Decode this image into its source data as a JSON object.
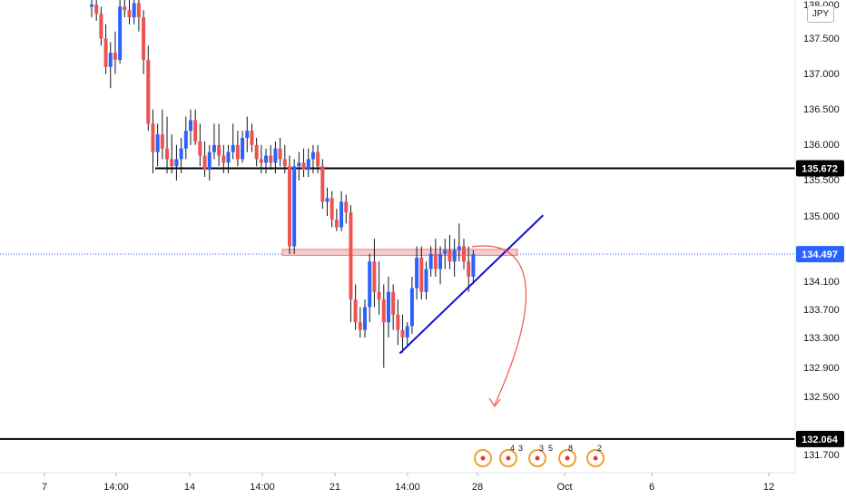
{
  "currency": "JPY",
  "colors": {
    "up": "#2962ff",
    "down": "#ef5350",
    "level": "#000000",
    "last": "#2962ff",
    "trendline": "#1010d0",
    "zone_fill": "#f7c6c8",
    "zone_stroke": "#e57373",
    "arrow": "#ef5350",
    "event": "#f0a030"
  },
  "chart_data": {
    "type": "candlestick",
    "x_ticks": [
      "7",
      "14:00",
      "14",
      "14:00",
      "21",
      "14:00",
      "28",
      "Oct",
      "6",
      "12"
    ],
    "y_ticks": [
      "138.000",
      "137.500",
      "137.000",
      "136.500",
      "136.000",
      "135.500",
      "135.000",
      "134.100",
      "133.700",
      "133.300",
      "132.900",
      "132.500",
      "131.700"
    ],
    "ylim": [
      131.55,
      138.05
    ],
    "price_tags": [
      "135.672",
      "134.497",
      "132.064"
    ],
    "horizontal_levels": [
      135.672,
      132.064
    ],
    "last_price": 134.497,
    "trendline": [
      [
        0,
        133.19
      ],
      [
        82,
        135.01
      ]
    ],
    "resistance_zone": [
      134.56,
      134.48
    ],
    "event_counts": [
      "4",
      "3",
      "3",
      "5",
      "8",
      "2"
    ],
    "candles": [
      [
        137.95,
        138.1,
        137.8,
        137.98
      ],
      [
        137.98,
        138.1,
        137.75,
        137.85
      ],
      [
        137.85,
        137.95,
        137.4,
        137.5
      ],
      [
        137.5,
        137.7,
        137.0,
        137.1
      ],
      [
        137.1,
        137.45,
        136.8,
        137.3
      ],
      [
        137.3,
        137.6,
        137.0,
        137.2
      ],
      [
        137.2,
        138.1,
        137.15,
        137.95
      ],
      [
        137.95,
        138.1,
        137.8,
        137.9
      ],
      [
        137.9,
        138.1,
        137.7,
        137.8
      ],
      [
        137.8,
        138.1,
        137.7,
        138.0
      ],
      [
        138.0,
        138.1,
        137.6,
        137.8
      ],
      [
        137.8,
        137.9,
        137.0,
        137.2
      ],
      [
        137.2,
        137.4,
        136.2,
        136.3
      ],
      [
        136.3,
        136.5,
        135.6,
        135.9
      ],
      [
        135.9,
        136.3,
        135.7,
        136.15
      ],
      [
        136.15,
        136.5,
        135.8,
        135.95
      ],
      [
        135.95,
        136.4,
        135.6,
        135.8
      ],
      [
        135.8,
        136.15,
        135.6,
        135.7
      ],
      [
        135.7,
        136.0,
        135.5,
        135.8
      ],
      [
        135.8,
        136.1,
        135.6,
        135.95
      ],
      [
        135.95,
        136.4,
        135.8,
        136.2
      ],
      [
        136.2,
        136.5,
        136.0,
        136.35
      ],
      [
        136.35,
        136.5,
        136.0,
        136.05
      ],
      [
        136.05,
        136.3,
        135.7,
        135.85
      ],
      [
        135.85,
        136.05,
        135.55,
        135.65
      ],
      [
        135.65,
        136.0,
        135.5,
        135.9
      ],
      [
        135.9,
        136.3,
        135.8,
        136.0
      ],
      [
        136.0,
        136.3,
        135.7,
        135.85
      ],
      [
        135.85,
        136.0,
        135.6,
        135.75
      ],
      [
        135.75,
        136.0,
        135.6,
        135.9
      ],
      [
        135.9,
        136.3,
        135.8,
        136.0
      ],
      [
        136.0,
        136.2,
        135.7,
        135.8
      ],
      [
        135.8,
        136.2,
        135.75,
        136.1
      ],
      [
        136.1,
        136.4,
        135.9,
        136.2
      ],
      [
        136.2,
        136.3,
        135.9,
        136.0
      ],
      [
        136.0,
        136.1,
        135.7,
        135.8
      ],
      [
        135.8,
        136.0,
        135.6,
        135.75
      ],
      [
        135.75,
        135.95,
        135.6,
        135.85
      ],
      [
        135.85,
        136.0,
        135.65,
        135.75
      ],
      [
        135.75,
        136.05,
        135.6,
        135.95
      ],
      [
        135.95,
        136.1,
        135.7,
        135.8
      ],
      [
        135.8,
        136.0,
        135.6,
        135.7
      ],
      [
        135.7,
        135.85,
        134.5,
        134.6
      ],
      [
        134.6,
        135.8,
        134.5,
        135.7
      ],
      [
        135.7,
        135.9,
        135.5,
        135.75
      ],
      [
        135.75,
        135.95,
        135.55,
        135.65
      ],
      [
        135.65,
        135.95,
        135.55,
        135.8
      ],
      [
        135.8,
        136.0,
        135.6,
        135.9
      ],
      [
        135.9,
        136.0,
        135.6,
        135.7
      ],
      [
        135.7,
        135.8,
        135.1,
        135.2
      ],
      [
        135.2,
        135.4,
        135.0,
        135.25
      ],
      [
        135.25,
        135.35,
        134.85,
        134.95
      ],
      [
        134.95,
        135.1,
        134.8,
        134.85
      ],
      [
        134.85,
        135.35,
        134.8,
        135.2
      ],
      [
        135.2,
        135.3,
        134.9,
        135.05
      ],
      [
        135.05,
        135.15,
        133.6,
        133.9
      ],
      [
        133.9,
        134.1,
        133.5,
        133.6
      ],
      [
        133.6,
        133.8,
        133.4,
        133.5
      ],
      [
        133.5,
        133.9,
        133.4,
        133.8
      ],
      [
        133.8,
        134.5,
        133.6,
        134.4
      ],
      [
        134.4,
        134.7,
        133.8,
        134.0
      ],
      [
        134.0,
        134.4,
        133.7,
        133.9
      ],
      [
        133.9,
        134.1,
        133.0,
        133.6
      ],
      [
        133.6,
        134.2,
        133.4,
        134.0
      ],
      [
        134.0,
        134.1,
        133.5,
        133.7
      ],
      [
        133.7,
        133.9,
        133.3,
        133.5
      ],
      [
        133.5,
        133.7,
        133.2,
        133.4
      ],
      [
        133.4,
        133.6,
        133.3,
        133.55
      ],
      [
        133.55,
        134.2,
        133.45,
        134.05
      ],
      [
        134.05,
        134.6,
        133.9,
        134.45
      ],
      [
        134.45,
        134.6,
        133.9,
        134.0
      ],
      [
        134.0,
        134.4,
        133.9,
        134.3
      ],
      [
        134.3,
        134.6,
        134.2,
        134.5
      ],
      [
        134.5,
        134.7,
        134.2,
        134.3
      ],
      [
        134.3,
        134.6,
        134.1,
        134.5
      ],
      [
        134.5,
        134.7,
        134.3,
        134.55
      ],
      [
        134.55,
        134.75,
        134.3,
        134.4
      ],
      [
        134.4,
        134.7,
        134.2,
        134.55
      ],
      [
        134.55,
        134.9,
        134.4,
        134.6
      ],
      [
        134.6,
        134.7,
        134.3,
        134.4
      ],
      [
        134.4,
        134.6,
        134.0,
        134.2
      ],
      [
        134.2,
        134.55,
        134.1,
        134.497
      ]
    ]
  }
}
